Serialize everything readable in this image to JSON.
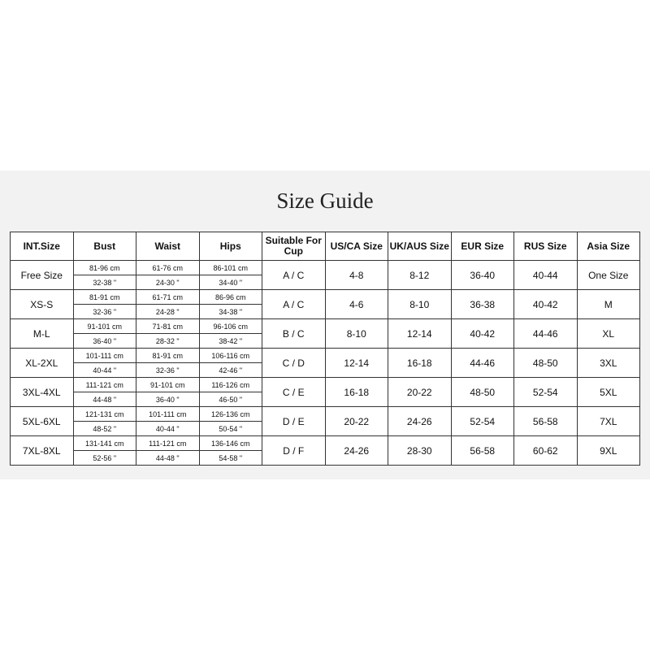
{
  "title": "Size Guide",
  "headers": [
    "INT.Size",
    "Bust",
    "Waist",
    "Hips",
    "Suitable For Cup",
    "US/CA Size",
    "UK/AUS Size",
    "EUR Size",
    "RUS Size",
    "Asia Size"
  ],
  "rows": [
    {
      "int": "Free Size",
      "bust": [
        "81-96 cm",
        "32-38 \""
      ],
      "waist": [
        "61-76 cm",
        "24-30 \""
      ],
      "hips": [
        "86-101 cm",
        "34-40 \""
      ],
      "cup": "A / C",
      "us": "4-8",
      "uk": "8-12",
      "eur": "36-40",
      "rus": "40-44",
      "asia": "One Size"
    },
    {
      "int": "XS-S",
      "bust": [
        "81-91 cm",
        "32-36 \""
      ],
      "waist": [
        "61-71 cm",
        "24-28 \""
      ],
      "hips": [
        "86-96 cm",
        "34-38 \""
      ],
      "cup": "A / C",
      "us": "4-6",
      "uk": "8-10",
      "eur": "36-38",
      "rus": "40-42",
      "asia": "M"
    },
    {
      "int": "M-L",
      "bust": [
        "91-101 cm",
        "36-40 \""
      ],
      "waist": [
        "71-81 cm",
        "28-32 \""
      ],
      "hips": [
        "96-106 cm",
        "38-42 \""
      ],
      "cup": "B / C",
      "us": "8-10",
      "uk": "12-14",
      "eur": "40-42",
      "rus": "44-46",
      "asia": "XL"
    },
    {
      "int": "XL-2XL",
      "bust": [
        "101-111 cm",
        "40-44 \""
      ],
      "waist": [
        "81-91 cm",
        "32-36 \""
      ],
      "hips": [
        "106-116 cm",
        "42-46 \""
      ],
      "cup": "C / D",
      "us": "12-14",
      "uk": "16-18",
      "eur": "44-46",
      "rus": "48-50",
      "asia": "3XL"
    },
    {
      "int": "3XL-4XL",
      "bust": [
        "111-121 cm",
        "44-48 \""
      ],
      "waist": [
        "91-101 cm",
        "36-40 \""
      ],
      "hips": [
        "116-126 cm",
        "46-50 \""
      ],
      "cup": "C / E",
      "us": "16-18",
      "uk": "20-22",
      "eur": "48-50",
      "rus": "52-54",
      "asia": "5XL"
    },
    {
      "int": "5XL-6XL",
      "bust": [
        "121-131 cm",
        "48-52 \""
      ],
      "waist": [
        "101-111 cm",
        "40-44 \""
      ],
      "hips": [
        "126-136 cm",
        "50-54 \""
      ],
      "cup": "D / E",
      "us": "20-22",
      "uk": "24-26",
      "eur": "52-54",
      "rus": "56-58",
      "asia": "7XL"
    },
    {
      "int": "7XL-8XL",
      "bust": [
        "131-141 cm",
        "52-56 \""
      ],
      "waist": [
        "111-121 cm",
        "44-48 \""
      ],
      "hips": [
        "136-146 cm",
        "54-58 \""
      ],
      "cup": "D / F",
      "us": "24-26",
      "uk": "28-30",
      "eur": "56-58",
      "rus": "60-62",
      "asia": "9XL"
    }
  ]
}
